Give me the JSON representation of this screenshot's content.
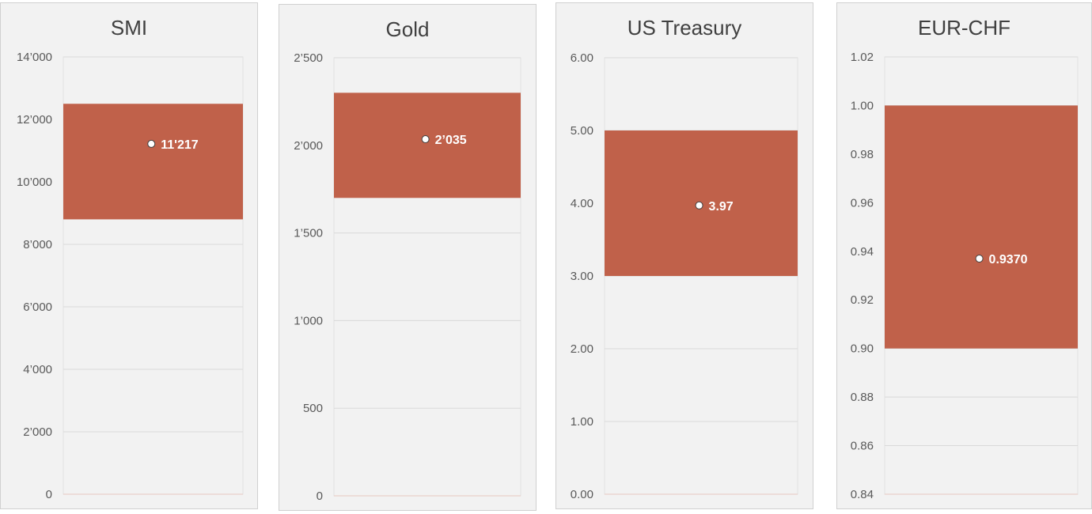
{
  "chart_data": [
    {
      "type": "bar",
      "title": "SMI",
      "ylim": [
        0,
        14000
      ],
      "ticks": [
        0,
        2000,
        4000,
        6000,
        8000,
        10000,
        12000,
        14000
      ],
      "tick_labels": [
        "0",
        "2’000",
        "4’000",
        "6’000",
        "8’000",
        "10’000",
        "12’000",
        "14’000"
      ],
      "range_low": 8800,
      "range_high": 12500,
      "value": 11217,
      "value_label": "11'217",
      "bar_color": "#c0614a",
      "grid": true
    },
    {
      "type": "bar",
      "title": "Gold",
      "ylim": [
        0,
        2500
      ],
      "ticks": [
        0,
        500,
        1000,
        1500,
        2000,
        2500
      ],
      "tick_labels": [
        "0",
        "500",
        "1’000",
        "1’500",
        "2’000",
        "2’500"
      ],
      "range_low": 1700,
      "range_high": 2300,
      "value": 2035,
      "value_label": "2’035",
      "bar_color": "#c0614a",
      "grid": true
    },
    {
      "type": "bar",
      "title": "US Treasury",
      "ylim": [
        0,
        6
      ],
      "ticks": [
        0,
        1,
        2,
        3,
        4,
        5,
        6
      ],
      "tick_labels": [
        "0.00",
        "1.00",
        "2.00",
        "3.00",
        "4.00",
        "5.00",
        "6.00"
      ],
      "range_low": 3.0,
      "range_high": 5.0,
      "value": 3.97,
      "value_label": "3.97",
      "bar_color": "#c0614a",
      "grid": true
    },
    {
      "type": "bar",
      "title": "EUR-CHF",
      "ylim": [
        0.84,
        1.02
      ],
      "ticks": [
        0.84,
        0.86,
        0.88,
        0.9,
        0.92,
        0.94,
        0.96,
        0.98,
        1.0,
        1.02
      ],
      "tick_labels": [
        "0.84",
        "0.86",
        "0.88",
        "0.90",
        "0.92",
        "0.94",
        "0.96",
        "0.98",
        "1.00",
        "1.02"
      ],
      "range_low": 0.9,
      "range_high": 1.0,
      "value": 0.937,
      "value_label": "0.9370",
      "bar_color": "#c0614a",
      "grid": true
    }
  ]
}
